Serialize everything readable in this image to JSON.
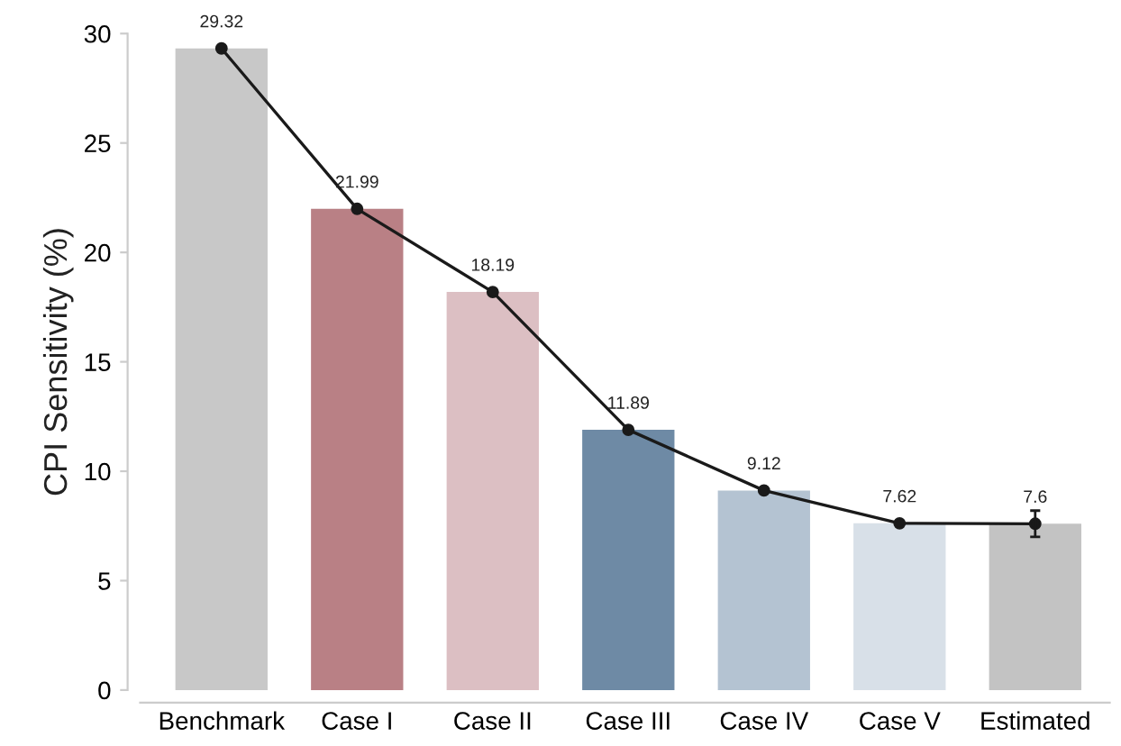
{
  "chart_data": {
    "type": "bar",
    "ylabel": "CPI Sensitivity (%)",
    "categories": [
      "Benchmark",
      "Case I",
      "Case II",
      "Case III",
      "Case IV",
      "Case V",
      "Estimated"
    ],
    "series": [
      {
        "colors": [
          "#c8c8c8",
          "#b98085",
          "#dcbfc3",
          "#6e8aa5",
          "#b4c3d2",
          "#d8e0e8",
          "#c3c3c3"
        ],
        "values": [
          29.32,
          21.99,
          18.19,
          11.89,
          9.12,
          7.62,
          7.6
        ]
      },
      {
        "type": "line",
        "color": "#1a1a1a",
        "marker": "circle",
        "values": [
          29.32,
          21.99,
          18.19,
          11.89,
          9.12,
          7.62,
          7.6
        ],
        "errors": [
          null,
          null,
          null,
          null,
          null,
          null,
          0.6
        ],
        "value_labels": [
          "29.32",
          "21.99",
          "18.19",
          "11.89",
          "9.12",
          "7.62",
          "7.6"
        ]
      }
    ],
    "ylim": [
      0,
      30
    ],
    "yticks": [
      0,
      5,
      10,
      15,
      20,
      25,
      30
    ],
    "grid": false,
    "legend": false
  }
}
